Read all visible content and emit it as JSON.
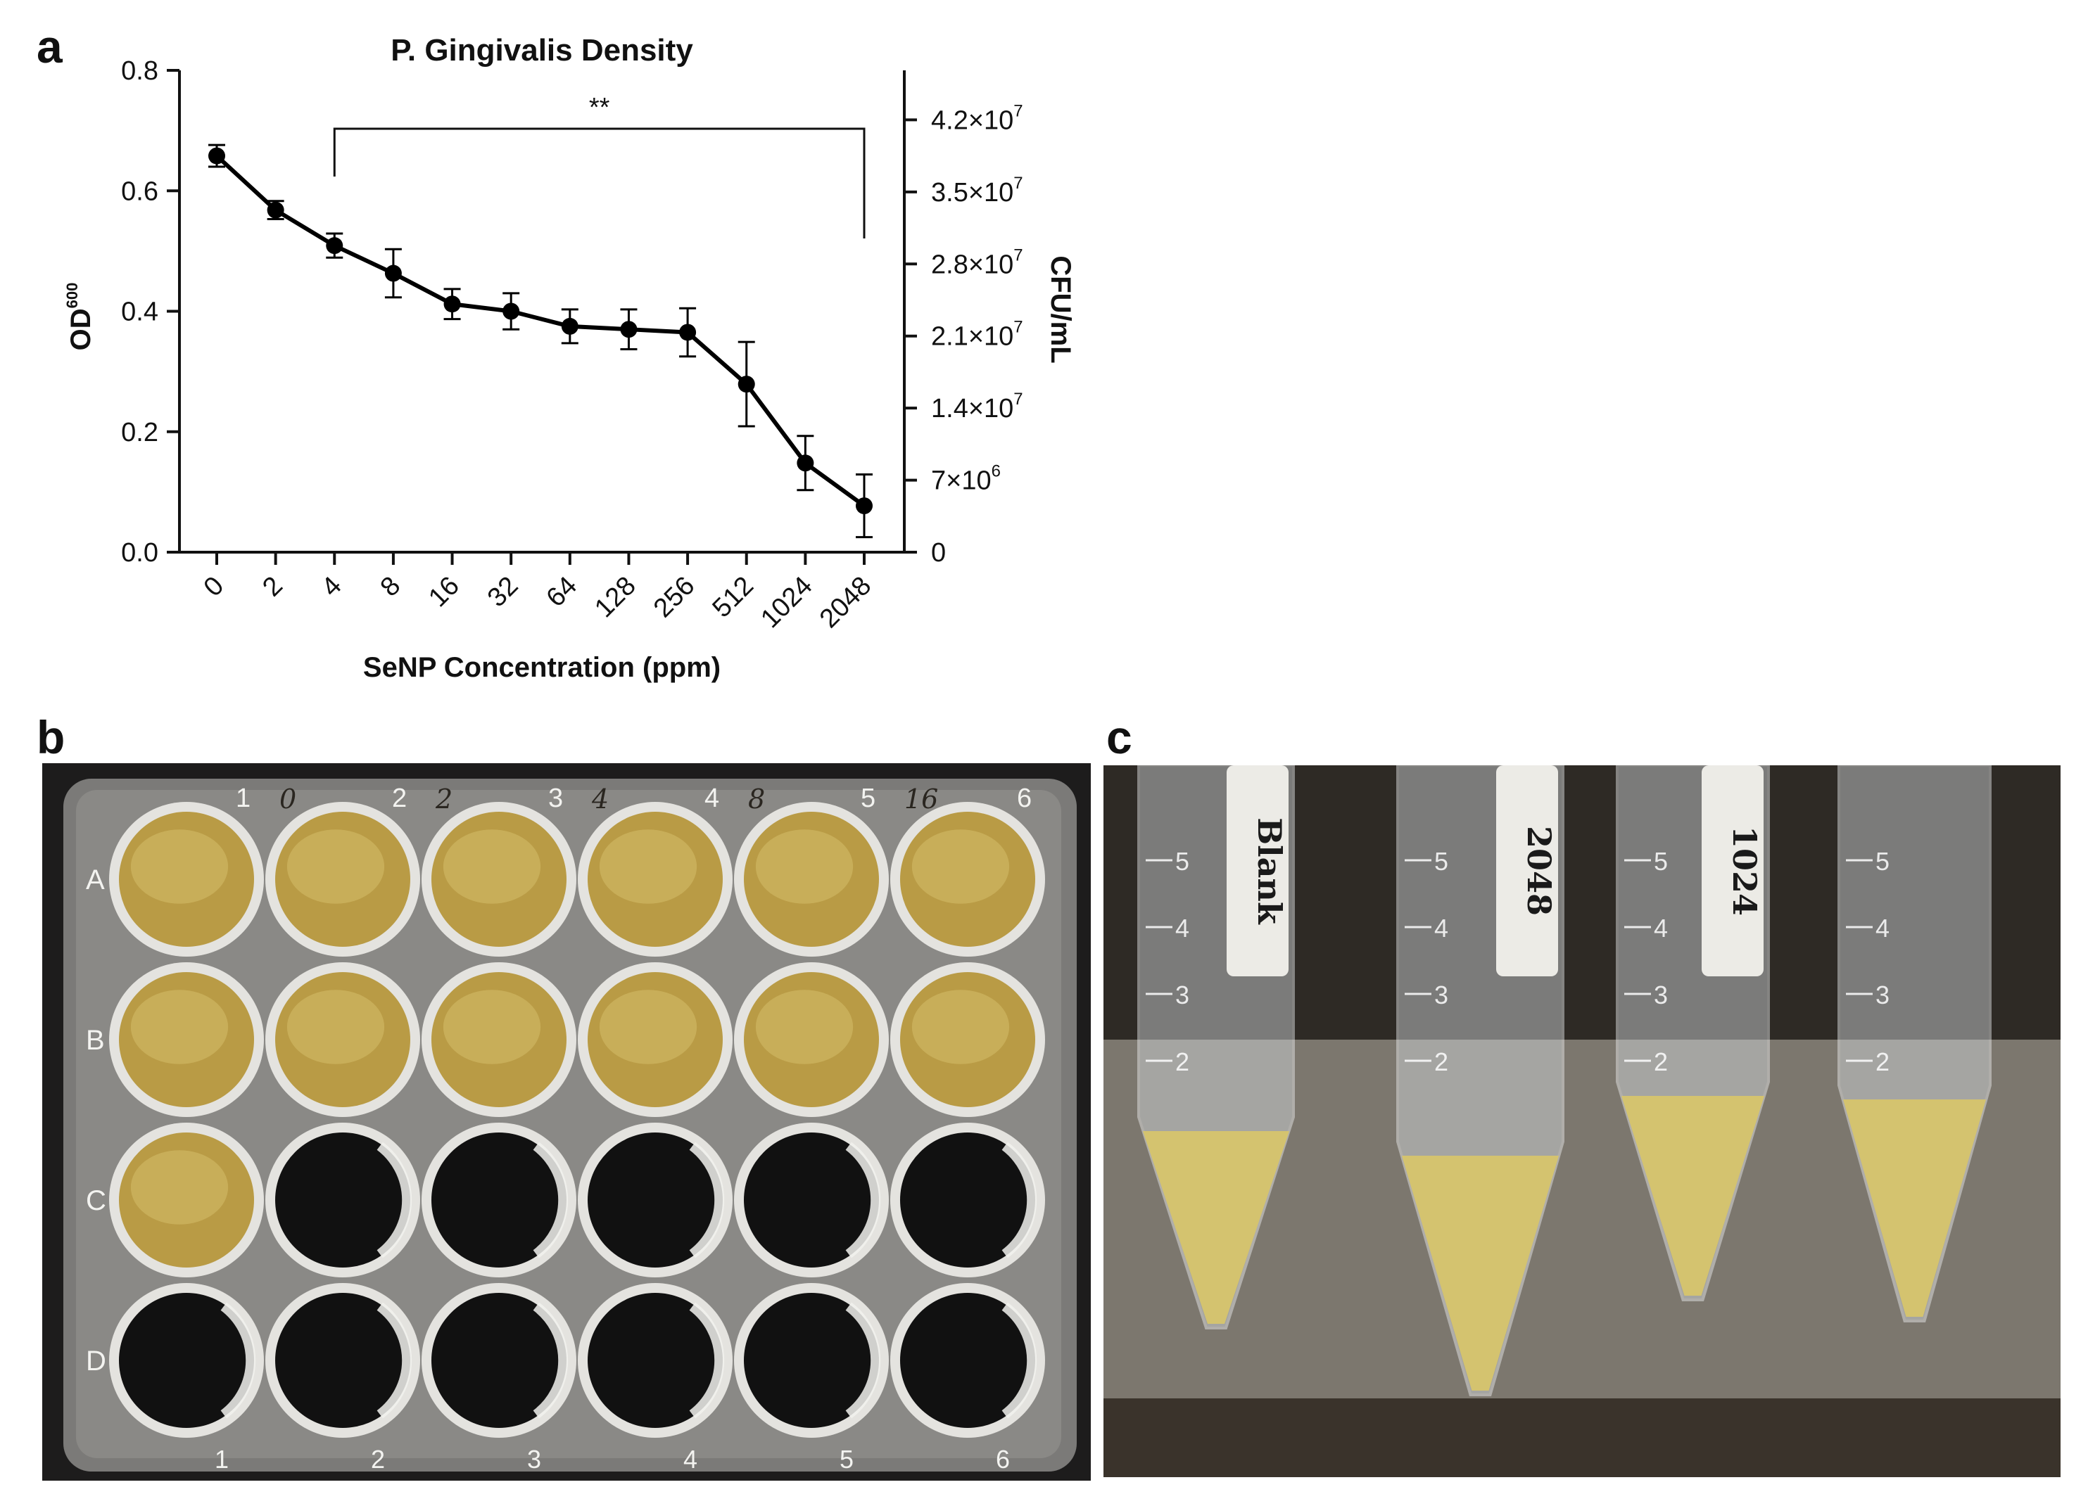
{
  "panels": {
    "a": "a",
    "b": "b",
    "c": "c"
  },
  "chart_data": {
    "type": "line",
    "title": "P. Gingivalis Density",
    "xlabel": "SeNP Concentration (ppm)",
    "ylabel": "OD",
    "ylabel_sup": "600",
    "y2label": "CFU/mL",
    "categories": [
      "0",
      "2",
      "4",
      "8",
      "16",
      "32",
      "64",
      "128",
      "256",
      "512",
      "1024",
      "2048"
    ],
    "series": [
      {
        "values": [
          0.658,
          0.568,
          0.509,
          0.463,
          0.412,
          0.4,
          0.375,
          0.37,
          0.365,
          0.279,
          0.148,
          0.077
        ],
        "errors": [
          0.018,
          0.015,
          0.02,
          0.04,
          0.025,
          0.03,
          0.028,
          0.033,
          0.04,
          0.07,
          0.045,
          0.052
        ],
        "color": "#000000"
      }
    ],
    "ylim": [
      0,
      0.8
    ],
    "yticks": [
      "0.0",
      "0.2",
      "0.4",
      "0.6",
      "0.8"
    ],
    "y2ticks": [
      {
        "base": "0",
        "exp": ""
      },
      {
        "base": "7×10",
        "exp": "6"
      },
      {
        "base": "1.4×10",
        "exp": "7"
      },
      {
        "base": "2.1×10",
        "exp": "7"
      },
      {
        "base": "2.8×10",
        "exp": "7"
      },
      {
        "base": "3.5×10",
        "exp": "7"
      },
      {
        "base": "4.2×10",
        "exp": "7"
      }
    ],
    "significance": {
      "from": "4",
      "to": "2048",
      "label": "**"
    },
    "grid": false
  },
  "photos": {
    "plate": {
      "rows": [
        "A",
        "B",
        "C",
        "D"
      ],
      "columns": [
        "1",
        "2",
        "3",
        "4",
        "5",
        "6"
      ],
      "handwritten_concentrations": [
        "0",
        "2",
        "4",
        "8",
        "16"
      ],
      "filled_wells": 13,
      "medium_color": "#b99b45",
      "plate_bg": "#1d1c1c"
    },
    "tubes": {
      "labels": [
        "Blank",
        "2048",
        "1024",
        ""
      ],
      "scale_marks": [
        "2",
        "3",
        "4",
        "5"
      ],
      "liquid_color": "#d8c66a",
      "background": "#2e2a25"
    }
  }
}
